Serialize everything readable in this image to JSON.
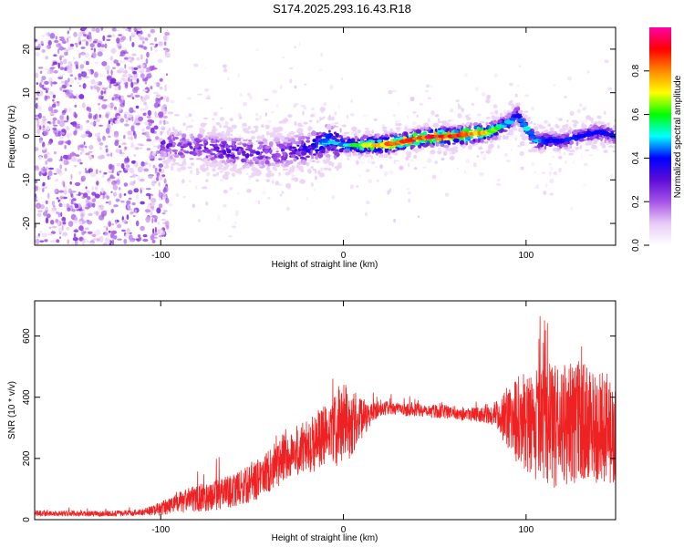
{
  "title": "S174.2025.293.16.43.R18",
  "colors": {
    "snr_line": "#ee2222",
    "colorbar": [
      "#ffffff",
      "#e8cbf6",
      "#a653e8",
      "#5c0dd6",
      "#0000ff",
      "#00ffff",
      "#00ff00",
      "#ffff00",
      "#ff8800",
      "#ff0000",
      "#ff00aa"
    ]
  },
  "chart_data": [
    {
      "type": "heatmap",
      "name": "spectrogram",
      "xlabel": "Height of straight line (km)",
      "ylabel": "Frequency (Hz)",
      "xlim": [
        -169,
        149
      ],
      "ylim": [
        -25,
        25
      ],
      "xticks": [
        -100,
        0,
        100
      ],
      "xtick_labels": [
        "-100",
        "0",
        "100"
      ],
      "yticks": [
        -20,
        -10,
        0,
        10,
        20
      ],
      "ytick_labels": [
        "-20",
        "-10",
        "0",
        "10",
        "20"
      ],
      "colorbar": {
        "label": "Normalized spectral amplitude",
        "range": [
          0,
          1
        ],
        "ticks": [
          0.0,
          0.2,
          0.4,
          0.6,
          0.8
        ],
        "tick_labels": [
          "0.0",
          "0.2",
          "0.4",
          "0.6",
          "0.8"
        ]
      },
      "ridge": {
        "x": [
          -100,
          -80,
          -60,
          -40,
          -20,
          -10,
          0,
          10,
          20,
          30,
          40,
          50,
          60,
          70,
          80,
          90,
          95,
          100,
          105,
          120,
          140,
          149
        ],
        "freq": [
          -2,
          -2.5,
          -3.5,
          -4,
          -3,
          -1,
          -2,
          -2,
          -2,
          -1.5,
          -0.5,
          0,
          0,
          0.5,
          1,
          3,
          5,
          2,
          -1,
          -1,
          1,
          0
        ],
        "amp": [
          0.3,
          0.3,
          0.35,
          0.3,
          0.4,
          0.5,
          0.5,
          0.7,
          0.8,
          0.9,
          0.9,
          0.95,
          0.95,
          0.9,
          0.7,
          0.5,
          0.4,
          0.5,
          0.5,
          0.4,
          0.4,
          0.4
        ]
      }
    },
    {
      "type": "line",
      "name": "snr",
      "xlabel": "Height of straight line (km)",
      "ylabel": "SNR (10 * v/v)",
      "xlim": [
        -169,
        149
      ],
      "ylim": [
        0,
        715
      ],
      "xticks": [
        -100,
        0,
        100
      ],
      "xtick_labels": [
        "-100",
        "0",
        "100"
      ],
      "yticks": [
        0,
        200,
        400,
        600
      ],
      "ytick_labels": [
        "0",
        "200",
        "400",
        "600"
      ],
      "series": [
        {
          "name": "SNR",
          "x": [
            -169,
            -160,
            -150,
            -140,
            -130,
            -120,
            -110,
            -100,
            -95,
            -90,
            -80,
            -70,
            -60,
            -50,
            -40,
            -35,
            -30,
            -20,
            -10,
            -5,
            0,
            5,
            10,
            15,
            20,
            25,
            30,
            40,
            50,
            60,
            70,
            80,
            85,
            90,
            95,
            100,
            105,
            110,
            115,
            120,
            130,
            140,
            149
          ],
          "mean": [
            22,
            20,
            20,
            19,
            20,
            21,
            24,
            35,
            45,
            55,
            70,
            80,
            95,
            120,
            160,
            190,
            210,
            240,
            270,
            290,
            310,
            320,
            330,
            345,
            360,
            365,
            360,
            360,
            355,
            350,
            345,
            340,
            345,
            330,
            330,
            320,
            310,
            300,
            300,
            310,
            320,
            300,
            290
          ],
          "spread": [
            10,
            10,
            10,
            10,
            10,
            10,
            12,
            25,
            30,
            40,
            50,
            55,
            60,
            70,
            80,
            90,
            90,
            100,
            120,
            130,
            150,
            120,
            80,
            40,
            25,
            25,
            25,
            25,
            25,
            25,
            25,
            30,
            60,
            120,
            160,
            180,
            200,
            220,
            230,
            230,
            220,
            200,
            220
          ]
        }
      ]
    }
  ]
}
